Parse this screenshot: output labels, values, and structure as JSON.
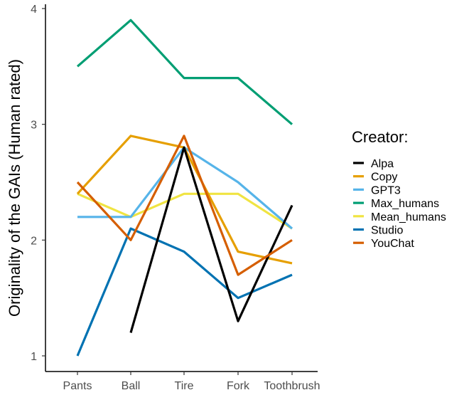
{
  "chart_data": {
    "type": "line",
    "title": "",
    "xlabel": "",
    "ylabel": "Originality of the GAIs (Human rated)",
    "categories": [
      "Pants",
      "Ball",
      "Tire",
      "Fork",
      "Toothbrush"
    ],
    "ylim": [
      0.9,
      4.05
    ],
    "yticks": [
      1,
      2,
      3,
      4
    ],
    "grid": false,
    "legend": {
      "title": "Creator:",
      "placement": "right"
    },
    "series": [
      {
        "name": "Alpa",
        "color": "#000000",
        "values": [
          null,
          1.2,
          2.8,
          1.3,
          2.3
        ]
      },
      {
        "name": "Copy",
        "color": "#E69F00",
        "values": [
          2.4,
          2.9,
          2.8,
          1.9,
          1.8
        ]
      },
      {
        "name": "GPT3",
        "color": "#56B4E9",
        "values": [
          2.2,
          2.2,
          2.8,
          2.5,
          2.1
        ]
      },
      {
        "name": "Max_humans",
        "color": "#009E73",
        "values": [
          3.5,
          3.9,
          3.4,
          3.4,
          3.0
        ]
      },
      {
        "name": "Mean_humans",
        "color": "#F0E442",
        "values": [
          2.4,
          2.2,
          2.4,
          2.4,
          2.1
        ]
      },
      {
        "name": "Studio",
        "color": "#0072B2",
        "values": [
          1.0,
          2.1,
          1.9,
          1.5,
          1.7
        ]
      },
      {
        "name": "YouChat",
        "color": "#D55E00",
        "values": [
          2.5,
          2.0,
          2.9,
          1.7,
          2.0
        ]
      }
    ]
  }
}
